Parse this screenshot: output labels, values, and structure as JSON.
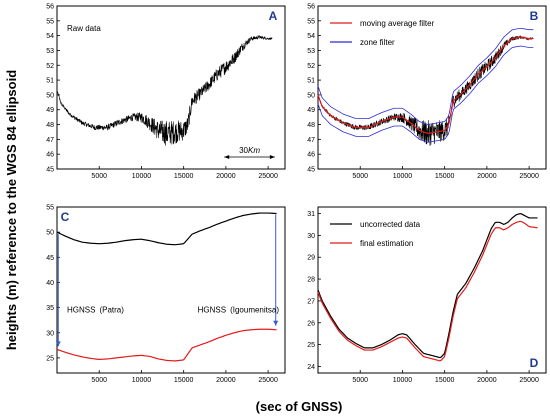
{
  "figure": {
    "ylabel": "heights (m) reference to the WGS 84 ellipsoid",
    "xlabel": "(sec of GNSS)"
  },
  "chart_data": [
    {
      "panel": "A",
      "type": "line",
      "annotation": "Raw data",
      "scale_label_prefix": "30",
      "scale_label_unit": "Km",
      "xlim": [
        0,
        27000
      ],
      "ylim": [
        45,
        56
      ],
      "xticks": [
        5000,
        10000,
        15000,
        20000,
        25000
      ],
      "yticks": [
        45,
        46,
        47,
        48,
        49,
        50,
        51,
        52,
        53,
        54,
        55,
        56
      ],
      "series": [
        {
          "color": "#000000",
          "noisy": true,
          "x": [
            0,
            500,
            1500,
            3000,
            4500,
            6000,
            7500,
            9000,
            10000,
            11000,
            12000,
            13000,
            14000,
            15000,
            15500,
            16000,
            17000,
            18000,
            19000,
            20000,
            21000,
            22000,
            23000,
            24000,
            25000,
            25500
          ],
          "y": [
            50.3,
            49.4,
            48.7,
            48.1,
            47.8,
            47.8,
            48.2,
            48.5,
            48.5,
            48.1,
            47.6,
            47.4,
            47.5,
            47.6,
            48.0,
            49.6,
            50.1,
            50.7,
            51.4,
            51.9,
            52.5,
            53.3,
            53.8,
            53.9,
            53.8,
            53.8
          ],
          "noise": [
            0.05,
            0.1,
            0.12,
            0.15,
            0.18,
            0.2,
            0.22,
            0.25,
            0.35,
            0.5,
            0.7,
            0.9,
            0.8,
            0.7,
            0.6,
            0.5,
            0.4,
            0.4,
            0.45,
            0.45,
            0.4,
            0.3,
            0.15,
            0.1,
            0.08,
            0.05
          ]
        }
      ]
    },
    {
      "panel": "B",
      "type": "line",
      "legend": [
        "moving average filter",
        "zone filter"
      ],
      "legend_position": "top-left",
      "xlim": [
        0,
        27000
      ],
      "ylim": [
        45,
        56
      ],
      "xticks": [
        5000,
        10000,
        15000,
        20000,
        25000
      ],
      "yticks": [
        45,
        46,
        47,
        48,
        49,
        50,
        51,
        52,
        53,
        54,
        55,
        56
      ],
      "series": [
        {
          "color": "#000000",
          "noisy": true,
          "x": [
            0,
            500,
            1500,
            3000,
            4500,
            6000,
            7500,
            9000,
            10000,
            11000,
            12000,
            13000,
            14000,
            15000,
            15500,
            16000,
            17000,
            18000,
            19000,
            20000,
            21000,
            22000,
            23000,
            24000,
            25000,
            25500
          ],
          "y": [
            50.0,
            49.2,
            48.6,
            48.1,
            47.8,
            47.8,
            48.2,
            48.5,
            48.5,
            48.1,
            47.6,
            47.4,
            47.5,
            47.6,
            48.0,
            49.6,
            50.1,
            50.7,
            51.4,
            51.9,
            52.5,
            53.3,
            53.8,
            53.9,
            53.8,
            53.8
          ],
          "noise": [
            0.05,
            0.1,
            0.12,
            0.15,
            0.18,
            0.2,
            0.22,
            0.25,
            0.35,
            0.5,
            0.7,
            0.9,
            0.8,
            0.7,
            0.6,
            0.5,
            0.4,
            0.4,
            0.45,
            0.45,
            0.4,
            0.3,
            0.15,
            0.1,
            0.08,
            0.05
          ]
        },
        {
          "name": "moving average filter",
          "color": "#e41a1c",
          "x": [
            0,
            500,
            1500,
            3000,
            4500,
            6000,
            7500,
            9000,
            10000,
            11000,
            12000,
            13000,
            14000,
            15000,
            15500,
            16000,
            17000,
            18000,
            19000,
            20000,
            21000,
            22000,
            23000,
            24000,
            25000,
            25500
          ],
          "y": [
            50.0,
            49.2,
            48.6,
            48.1,
            47.8,
            47.8,
            48.2,
            48.5,
            48.5,
            48.1,
            47.6,
            47.4,
            47.5,
            47.6,
            48.0,
            49.6,
            50.1,
            50.7,
            51.4,
            51.9,
            52.5,
            53.3,
            53.8,
            53.9,
            53.8,
            53.8
          ]
        },
        {
          "name": "zone filter",
          "color": "#2b2bd6",
          "x": [
            0,
            500,
            1500,
            3000,
            4500,
            6000,
            7500,
            9000,
            10000,
            11000,
            12000,
            13000,
            14000,
            15000,
            15500,
            16000,
            17000,
            18000,
            19000,
            20000,
            21000,
            22000,
            23000,
            24000,
            25000,
            25500
          ],
          "y": [
            50.6,
            49.8,
            49.2,
            48.7,
            48.4,
            48.4,
            48.8,
            49.1,
            49.1,
            48.7,
            48.2,
            48.0,
            48.1,
            48.2,
            48.6,
            50.2,
            50.7,
            51.3,
            52.0,
            52.5,
            53.1,
            53.9,
            54.4,
            54.5,
            54.4,
            54.4
          ]
        },
        {
          "name": "zone filter",
          "color": "#2b2bd6",
          "x": [
            0,
            500,
            1500,
            3000,
            4500,
            6000,
            7500,
            9000,
            10000,
            11000,
            12000,
            13000,
            14000,
            15000,
            15500,
            16000,
            17000,
            18000,
            19000,
            20000,
            21000,
            22000,
            23000,
            24000,
            25000,
            25500
          ],
          "y": [
            49.4,
            48.6,
            48.0,
            47.5,
            47.2,
            47.2,
            47.6,
            47.9,
            47.9,
            47.5,
            47.0,
            46.8,
            46.9,
            47.0,
            47.4,
            49.0,
            49.5,
            50.1,
            50.8,
            51.3,
            51.9,
            52.7,
            53.2,
            53.3,
            53.2,
            53.2
          ]
        }
      ]
    },
    {
      "panel": "C",
      "type": "line",
      "annotation_left_main": "HGNSS",
      "annotation_left_sub": "(Patra)",
      "annotation_right_main": "HGNSS",
      "annotation_right_sub": "(Igoumenitsa)",
      "xlim": [
        0,
        27000
      ],
      "ylim": [
        22,
        55
      ],
      "xticks": [
        5000,
        10000,
        15000,
        20000,
        25000
      ],
      "yticks": [
        25,
        30,
        35,
        40,
        45,
        50,
        55
      ],
      "series": [
        {
          "color": "#000000",
          "x": [
            0,
            1000,
            2000,
            3000,
            4000,
            5000,
            6000,
            7000,
            8000,
            9000,
            10000,
            11000,
            12000,
            13000,
            14000,
            15000,
            16000,
            17000,
            18000,
            19000,
            20000,
            21000,
            22000,
            23000,
            24000,
            25000,
            26000
          ],
          "y": [
            50.0,
            49.2,
            48.5,
            48.0,
            47.8,
            47.7,
            47.8,
            48.0,
            48.3,
            48.5,
            48.6,
            48.3,
            47.9,
            47.6,
            47.5,
            47.7,
            49.6,
            50.3,
            50.9,
            51.6,
            52.2,
            52.8,
            53.3,
            53.6,
            53.8,
            53.8,
            53.7
          ]
        },
        {
          "color": "#e41a1c",
          "x": [
            0,
            1000,
            2000,
            3000,
            4000,
            5000,
            6000,
            7000,
            8000,
            9000,
            10000,
            11000,
            12000,
            13000,
            14000,
            15000,
            16000,
            17000,
            18000,
            19000,
            20000,
            21000,
            22000,
            23000,
            24000,
            25000,
            26000
          ],
          "y": [
            26.7,
            26.1,
            25.6,
            25.2,
            24.9,
            24.7,
            24.8,
            25.0,
            25.2,
            25.4,
            25.5,
            25.3,
            24.8,
            24.5,
            24.4,
            24.6,
            27.0,
            27.6,
            28.2,
            28.9,
            29.5,
            30.0,
            30.4,
            30.6,
            30.7,
            30.7,
            30.6
          ]
        }
      ]
    },
    {
      "panel": "D",
      "type": "line",
      "legend": [
        "uncorrected data",
        "final estimation"
      ],
      "legend_position": "top-left",
      "xlim": [
        0,
        27000
      ],
      "ylim": [
        23.7,
        31.3
      ],
      "xticks": [
        5000,
        10000,
        15000,
        20000,
        25000
      ],
      "yticks": [
        24,
        25,
        26,
        27,
        28,
        29,
        30,
        31
      ],
      "series": [
        {
          "name": "uncorrected data",
          "color": "#000000",
          "x": [
            0,
            500,
            1500,
            2500,
            3500,
            4500,
            5500,
            6500,
            7500,
            8500,
            9500,
            10000,
            10500,
            11500,
            12500,
            13500,
            14500,
            15000,
            15500,
            16000,
            16500,
            17500,
            18500,
            19500,
            20500,
            21000,
            21500,
            22000,
            22500,
            23000,
            23500,
            24000,
            24500,
            25000,
            26000
          ],
          "y": [
            27.5,
            27.0,
            26.3,
            25.7,
            25.3,
            25.05,
            24.85,
            24.85,
            25.0,
            25.2,
            25.45,
            25.5,
            25.45,
            25.0,
            24.6,
            24.5,
            24.4,
            24.6,
            25.5,
            26.5,
            27.3,
            27.8,
            28.5,
            29.3,
            30.3,
            30.6,
            30.6,
            30.5,
            30.6,
            30.8,
            30.95,
            31.0,
            30.9,
            30.8,
            30.8
          ]
        },
        {
          "name": "final estimation",
          "color": "#e41a1c",
          "x": [
            0,
            500,
            1500,
            2500,
            3500,
            4500,
            5500,
            6500,
            7500,
            8500,
            9500,
            10000,
            10500,
            11500,
            12500,
            13500,
            14500,
            15000,
            15500,
            16000,
            16500,
            17500,
            18500,
            19500,
            20500,
            21000,
            21500,
            22000,
            22500,
            23000,
            23500,
            24000,
            24500,
            25000,
            26000
          ],
          "y": [
            27.4,
            26.9,
            26.2,
            25.6,
            25.2,
            24.95,
            24.75,
            24.75,
            24.9,
            25.1,
            25.3,
            25.35,
            25.3,
            24.85,
            24.45,
            24.35,
            24.25,
            24.45,
            25.3,
            26.3,
            27.1,
            27.6,
            28.3,
            29.1,
            30.05,
            30.35,
            30.35,
            30.25,
            30.35,
            30.5,
            30.6,
            30.65,
            30.55,
            30.4,
            30.35
          ]
        }
      ]
    }
  ]
}
